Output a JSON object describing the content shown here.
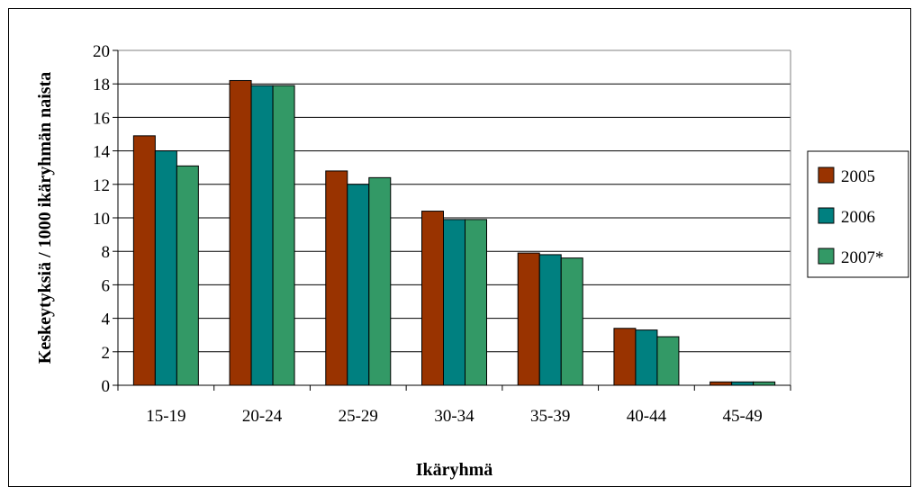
{
  "chart_data": {
    "type": "bar",
    "title": "",
    "xlabel": "Ikäryhmä",
    "ylabel": "Keskeytyksiä / 1000 ikäryhmän naista",
    "categories": [
      "15-19",
      "20-24",
      "25-29",
      "30-34",
      "35-39",
      "40-44",
      "45-49"
    ],
    "ylim": [
      0,
      20
    ],
    "yticks": [
      "0",
      "2",
      "4",
      "6",
      "8",
      "10",
      "12",
      "14",
      "16",
      "18",
      "20"
    ],
    "grid": true,
    "legend_position": "right",
    "series": [
      {
        "name": "2005",
        "color": "#993300",
        "values": [
          14.9,
          18.2,
          12.8,
          10.4,
          7.9,
          3.4,
          0.2
        ]
      },
      {
        "name": "2006",
        "color": "#008080",
        "values": [
          14.0,
          17.9,
          12.0,
          9.9,
          7.8,
          3.3,
          0.2
        ]
      },
      {
        "name": "2007*",
        "color": "#339966",
        "values": [
          13.1,
          17.9,
          12.4,
          9.9,
          7.6,
          2.9,
          0.2
        ]
      }
    ]
  }
}
